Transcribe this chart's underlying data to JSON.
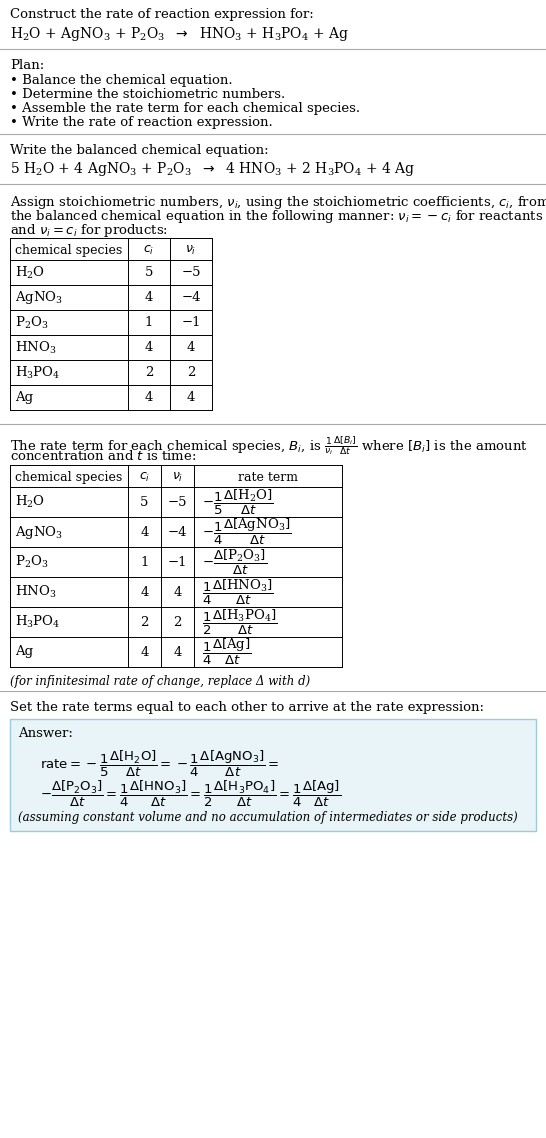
{
  "bg_color": "#ffffff",
  "text_color": "#000000",
  "font_size": 10,
  "plan_items": [
    "• Balance the chemical equation.",
    "• Determine the stoichiometric numbers.",
    "• Assemble the rate term for each chemical species.",
    "• Write the rate of reaction expression."
  ],
  "stoich_rows": [
    [
      "$\\mathregular{H_2O}$",
      "5",
      "−5"
    ],
    [
      "$\\mathregular{AgNO_3}$",
      "4",
      "−4"
    ],
    [
      "$\\mathregular{P_2O_3}$",
      "1",
      "−1"
    ],
    [
      "$\\mathregular{HNO_3}$",
      "4",
      "4"
    ],
    [
      "$\\mathregular{H_3PO_4}$",
      "2",
      "2"
    ],
    [
      "Ag",
      "4",
      "4"
    ]
  ],
  "rate_rows": [
    [
      "$\\mathregular{H_2O}$",
      "5",
      "−5"
    ],
    [
      "$\\mathregular{AgNO_3}$",
      "4",
      "−4"
    ],
    [
      "$\\mathregular{P_2O_3}$",
      "1",
      "−1"
    ],
    [
      "$\\mathregular{HNO_3}$",
      "4",
      "4"
    ],
    [
      "$\\mathregular{H_3PO_4}$",
      "2",
      "2"
    ],
    [
      "Ag",
      "4",
      "4"
    ]
  ],
  "rate_terms": [
    "$-\\dfrac{1}{5}\\dfrac{\\Delta[\\mathregular{H_2O}]}{\\Delta t}$",
    "$-\\dfrac{1}{4}\\dfrac{\\Delta[\\mathregular{AgNO_3}]}{\\Delta t}$",
    "$-\\dfrac{\\Delta[\\mathregular{P_2O_3}]}{\\Delta t}$",
    "$\\dfrac{1}{4}\\dfrac{\\Delta[\\mathregular{HNO_3}]}{\\Delta t}$",
    "$\\dfrac{1}{2}\\dfrac{\\Delta[\\mathregular{H_3PO_4}]}{\\Delta t}$",
    "$\\dfrac{1}{4}\\dfrac{\\Delta[\\mathregular{Ag}]}{\\Delta t}$"
  ],
  "answer_box_color": "#e8f4f8",
  "answer_box_border": "#99ccdd",
  "line_color": "#aaaaaa"
}
